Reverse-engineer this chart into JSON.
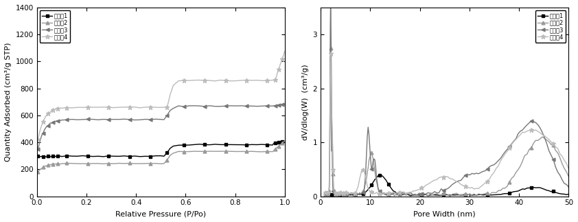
{
  "left": {
    "xlabel": "Relative Pressure (P/Po)",
    "ylabel": "Quantity Adsorbed (cm³/g STP)",
    "xlim": [
      0.0,
      1.0
    ],
    "ylim": [
      0,
      1400
    ],
    "yticks": [
      0,
      200,
      400,
      600,
      800,
      1000,
      1200,
      1400
    ],
    "xticks": [
      0.0,
      0.2,
      0.4,
      0.6,
      0.8,
      1.0
    ],
    "legend_labels": [
      "实施例1",
      "实施例2",
      "实施例3",
      "实施例4"
    ],
    "s1_color": "#000000",
    "s2_color": "#999999",
    "s3_color": "#777777",
    "s4_color": "#bbbbbb"
  },
  "right": {
    "xlabel": "Pore Width (nm)",
    "ylabel": "dV/dlog(W)  (cm³/g)",
    "xlim": [
      0,
      50
    ],
    "ylim": [
      0,
      3.5
    ],
    "yticks": [
      0,
      1.0,
      2.0,
      3.0
    ],
    "xticks": [
      0,
      10,
      20,
      30,
      40,
      50
    ],
    "legend_labels": [
      "实施例1",
      "实施例2",
      "实施例3",
      "实施例4"
    ],
    "s1_color": "#000000",
    "s2_color": "#999999",
    "s3_color": "#777777",
    "s4_color": "#bbbbbb"
  }
}
